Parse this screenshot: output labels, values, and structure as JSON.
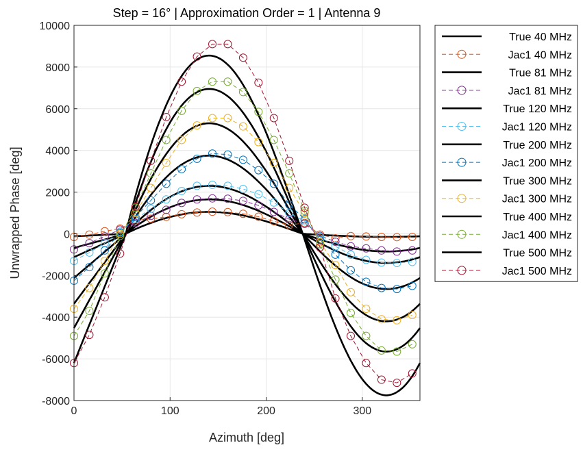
{
  "chart_data": {
    "type": "line",
    "title": "Step = 16° | Approximation Order = 1 | Antenna 9",
    "xlabel": "Azimuth [deg]",
    "ylabel": "Unwrapped Phase [deg]",
    "xlim": [
      0,
      360
    ],
    "ylim": [
      -8000,
      10000
    ],
    "xticks": [
      0,
      100,
      200,
      300
    ],
    "yticks": [
      -8000,
      -6000,
      -4000,
      -2000,
      0,
      2000,
      4000,
      6000,
      8000,
      10000
    ],
    "grid": true,
    "legend_position": "outside-right",
    "jac_x": [
      0,
      16,
      32,
      48,
      64,
      80,
      96,
      112,
      128,
      144,
      160,
      176,
      192,
      208,
      224,
      240,
      256,
      272,
      288,
      304,
      320,
      336,
      352
    ],
    "series": [
      {
        "name": "True 40 MHz",
        "style": "solid",
        "color": "#000000",
        "amplitude": 1050,
        "min_value": -150
      },
      {
        "name": "Jac1 40 MHz",
        "style": "dashed-circle",
        "color": "#D95319",
        "y": [
          -150,
          -40,
          120,
          250,
          640,
          720,
          810,
          940,
          1020,
          1060,
          1040,
          960,
          820,
          600,
          420,
          520,
          -40,
          -220,
          -110,
          -130,
          -150,
          -160,
          -150
        ]
      },
      {
        "name": "True 81 MHz",
        "style": "solid",
        "color": "#000000",
        "amplitude": 1650,
        "min_value": -850
      },
      {
        "name": "Jac1 81 MHz",
        "style": "dashed-circle",
        "color": "#7E2F8E",
        "y": [
          -750,
          -450,
          -120,
          200,
          520,
          860,
          1150,
          1480,
          1650,
          1700,
          1680,
          1580,
          1360,
          1050,
          700,
          480,
          -100,
          -380,
          -600,
          -700,
          -800,
          -850,
          -800
        ]
      },
      {
        "name": "True 120 MHz",
        "style": "solid",
        "color": "#000000",
        "amplitude": 2300,
        "min_value": -1400
      },
      {
        "name": "Jac1 120 MHz",
        "style": "dashed-circle",
        "color": "#4DBEEE",
        "y": [
          -1300,
          -900,
          -450,
          100,
          700,
          1200,
          1650,
          2050,
          2300,
          2350,
          2300,
          2150,
          1900,
          1500,
          1000,
          600,
          -150,
          -600,
          -1000,
          -1250,
          -1380,
          -1400,
          -1350
        ]
      },
      {
        "name": "True 200 MHz",
        "style": "solid",
        "color": "#000000",
        "amplitude": 3750,
        "min_value": -2650
      },
      {
        "name": "Jac1 200 MHz",
        "style": "dashed-circle",
        "color": "#0072BD",
        "y": [
          -2250,
          -1600,
          -800,
          50,
          800,
          1600,
          2400,
          3100,
          3600,
          3850,
          3800,
          3550,
          3050,
          2400,
          1400,
          700,
          -300,
          -1000,
          -1750,
          -2300,
          -2600,
          -2650,
          -2500
        ]
      },
      {
        "name": "True 300 MHz",
        "style": "solid",
        "color": "#000000",
        "amplitude": 5300,
        "min_value": -4200
      },
      {
        "name": "Jac1 300 MHz",
        "style": "dashed-circle",
        "color": "#EDB120",
        "y": [
          -3600,
          -2600,
          -1300,
          0,
          1000,
          2200,
          3400,
          4500,
          5200,
          5550,
          5550,
          5150,
          4400,
          3400,
          2200,
          1000,
          -400,
          -1500,
          -2800,
          -3600,
          -4100,
          -4150,
          -3900
        ]
      },
      {
        "name": "True 400 MHz",
        "style": "solid",
        "color": "#000000",
        "amplitude": 6950,
        "min_value": -5650
      },
      {
        "name": "Jac1 400 MHz",
        "style": "dashed-circle",
        "color": "#77AC30",
        "y": [
          -4900,
          -3700,
          -1900,
          -100,
          1250,
          2900,
          4500,
          5900,
          6850,
          7300,
          7300,
          6800,
          5850,
          4500,
          2900,
          1100,
          -500,
          -2200,
          -3800,
          -4900,
          -5600,
          -5650,
          -5300
        ]
      },
      {
        "name": "True 500 MHz",
        "style": "solid",
        "color": "#000000",
        "amplitude": 8550,
        "min_value": -7750
      },
      {
        "name": "Jac1 500 MHz",
        "style": "dashed-circle",
        "color": "#A2142F",
        "y": [
          -6200,
          -4850,
          -3050,
          -950,
          1300,
          3500,
          5600,
          7300,
          8500,
          9100,
          9100,
          8450,
          7250,
          5550,
          3500,
          1250,
          -650,
          -3100,
          -4900,
          -6200,
          -7000,
          -7150,
          -6700
        ]
      }
    ]
  }
}
